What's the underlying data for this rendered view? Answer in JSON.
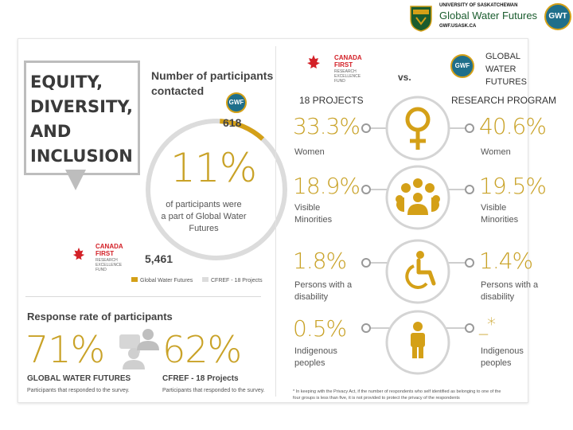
{
  "header": {
    "university": "UNIVERSITY OF SASKATCHEWAN",
    "program": "Global Water Futures",
    "url": "GWF.USASK.CA",
    "gwt_logo_text": "GWT",
    "accent": "#d4a017"
  },
  "edi": {
    "title_line1": "EQUITY,",
    "title_line2": "DIVERSITY,",
    "title_line3": "AND",
    "title_line4": "INCLUSION"
  },
  "participants": {
    "heading_line1": "Number of participants",
    "heading_line2": "contacted",
    "gwf_count": "618",
    "cfref_count": "5,461",
    "percent": "11%",
    "desc_line1": "of participants were",
    "desc_line2": "a part of Global Water",
    "desc_line3": "Futures",
    "gwf_share": 0.11,
    "legend_gwf": "Global Water Futures",
    "legend_cfref": "CFREF - 18 Projects"
  },
  "cfref_logo": {
    "line1": "CANADA",
    "line2": "FIRST",
    "line3": "RESEARCH",
    "line4": "EXCELLENCE",
    "line5": "FUND"
  },
  "gwf_logo": {
    "icon_text": "GWF",
    "line1": "GLOBAL",
    "line2": "WATER",
    "line3": "FUTURES"
  },
  "response": {
    "heading": "Response rate of participants",
    "gwf_rate": "71%",
    "gwf_label": "GLOBAL WATER FUTURES",
    "gwf_sub": "Participants that responded to the survey.",
    "cfref_rate": "62%",
    "cfref_label": "CFREF - 18 Projects",
    "cfref_sub": "Participants that responded to the survey."
  },
  "comparison": {
    "vs": "vs.",
    "left_header": "18 PROJECTS",
    "right_header": "RESEARCH PROGRAM",
    "rows": [
      {
        "left_value": "33.3%",
        "left_label1": "Women",
        "left_label2": "",
        "right_value": "40.6%",
        "right_label1": "Women",
        "right_label2": ""
      },
      {
        "left_value": "18.9%",
        "left_label1": "Visible",
        "left_label2": "Minorities",
        "right_value": "19.5%",
        "right_label1": "Visible",
        "right_label2": "Minorities"
      },
      {
        "left_value": "1.8%",
        "left_label1": "Persons with a",
        "left_label2": "disability",
        "right_value": "1.4%",
        "right_label1": "Persons with a",
        "right_label2": "disability"
      },
      {
        "left_value": "0.5%",
        "left_label1": "Indigenous",
        "left_label2": "peoples",
        "right_value": "_*",
        "right_label1": "Indigenous",
        "right_label2": "peoples"
      }
    ],
    "footnote_line1": "* In keeping with the Privacy Act, if the number of respondents who self identified as belonging to one of the",
    "footnote_line2": "four groups is less than five, it is not provided to protect the privacy of the respondents"
  }
}
